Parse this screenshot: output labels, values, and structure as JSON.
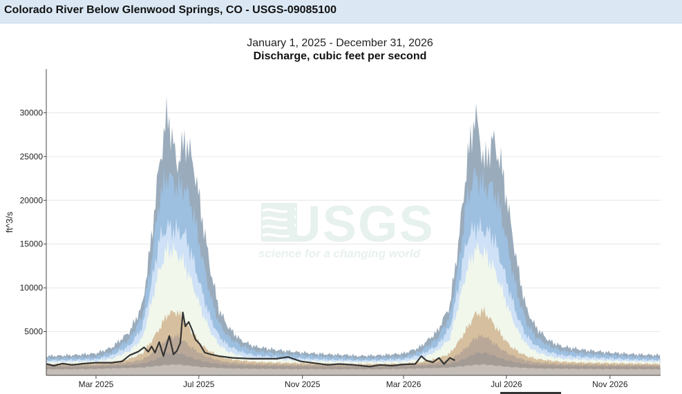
{
  "header": {
    "title": "Colorado River Below Glenwood Springs, CO - USGS-09085100"
  },
  "watermark": {
    "logo_text": "USGS",
    "tagline": "science for a changing world"
  },
  "chart_data": {
    "type": "area",
    "title": "Discharge, cubic feet per second",
    "subtitle": "January 1, 2025 - December 31, 2026",
    "ylabel": "ft^3/s",
    "xlabel": "",
    "xlim": [
      "2025-01-01",
      "2026-12-31"
    ],
    "ylim": [
      0,
      35000
    ],
    "y_ticks": [
      5000,
      10000,
      15000,
      20000,
      25000,
      30000
    ],
    "x_ticks": [
      {
        "date": "2025-03-01",
        "label": "Mar 2025"
      },
      {
        "date": "2025-07-01",
        "label": "Jul 2025"
      },
      {
        "date": "2025-11-01",
        "label": "Nov 2025"
      },
      {
        "date": "2026-03-01",
        "label": "Mar 2026"
      },
      {
        "date": "2026-07-01",
        "label": "Jul 2026"
      },
      {
        "date": "2026-11-01",
        "label": "Nov 2026"
      }
    ],
    "grid": true,
    "bands_annual_profile": {
      "month_day": [
        "01-01",
        "02-01",
        "03-01",
        "03-20",
        "04-10",
        "04-25",
        "05-05",
        "05-15",
        "05-25",
        "06-05",
        "06-15",
        "06-25",
        "07-05",
        "07-15",
        "07-25",
        "08-05",
        "08-20",
        "09-05",
        "10-01",
        "11-01",
        "12-01",
        "12-31"
      ],
      "bands": [
        {
          "color": "#9aabbb",
          "upper": [
            2200,
            2300,
            2500,
            3200,
            5000,
            8000,
            15000,
            24000,
            30000,
            24000,
            27000,
            24000,
            18000,
            12000,
            7500,
            5500,
            4000,
            3300,
            2900,
            2600,
            2400,
            2300
          ]
        },
        {
          "color": "#9dbfe0",
          "upper": [
            1900,
            2000,
            2100,
            2700,
            4200,
            6800,
            12500,
            20000,
            23000,
            21500,
            21500,
            18500,
            13500,
            9000,
            6000,
            4400,
            3400,
            2800,
            2500,
            2300,
            2100,
            2000
          ]
        },
        {
          "color": "#cfe1f6",
          "upper": [
            1700,
            1750,
            1850,
            2300,
            3400,
            5500,
            10000,
            15500,
            17000,
            16500,
            16000,
            13000,
            9500,
            6500,
            4500,
            3400,
            2700,
            2300,
            2100,
            1950,
            1800,
            1750
          ]
        },
        {
          "color": "#f1f7eb",
          "upper": [
            1500,
            1550,
            1600,
            1900,
            2800,
            4200,
            8000,
            12000,
            14500,
            14000,
            12500,
            10000,
            7200,
            5000,
            3500,
            2700,
            2200,
            1900,
            1800,
            1700,
            1600,
            1550
          ]
        },
        {
          "color": "#d6bf9e",
          "upper": [
            1300,
            1300,
            1350,
            1500,
            1900,
            2500,
            3800,
            5300,
            7000,
            7300,
            6000,
            4600,
            3400,
            2700,
            2200,
            1900,
            1700,
            1550,
            1450,
            1400,
            1350,
            1300
          ]
        },
        {
          "color": "#b9a898",
          "upper": [
            1150,
            1150,
            1200,
            1300,
            1500,
            1800,
            2400,
            3200,
            4300,
            4500,
            3800,
            3000,
            2400,
            2000,
            1700,
            1500,
            1400,
            1300,
            1250,
            1200,
            1180,
            1150
          ]
        },
        {
          "color": "#a49b95",
          "upper": [
            1000,
            1000,
            1050,
            1100,
            1200,
            1350,
            1600,
            2000,
            2500,
            2600,
            2300,
            1900,
            1650,
            1450,
            1300,
            1200,
            1150,
            1100,
            1050,
            1020,
            1010,
            1000
          ]
        },
        {
          "color": "#c4bdb8",
          "upper": [
            700,
            700,
            750,
            800,
            850,
            900,
            1000,
            1100,
            1200,
            1250,
            1150,
            1050,
            950,
            900,
            850,
            800,
            780,
            760,
            740,
            720,
            710,
            700
          ]
        }
      ]
    },
    "series": [
      {
        "color": "#333333",
        "points": [
          [
            "2025-01-01",
            1300
          ],
          [
            "2025-01-10",
            1100
          ],
          [
            "2025-01-20",
            1350
          ],
          [
            "2025-02-01",
            1200
          ],
          [
            "2025-02-15",
            1350
          ],
          [
            "2025-03-01",
            1450
          ],
          [
            "2025-03-20",
            1450
          ],
          [
            "2025-04-01",
            1600
          ],
          [
            "2025-04-10",
            2300
          ],
          [
            "2025-04-20",
            2700
          ],
          [
            "2025-04-27",
            3200
          ],
          [
            "2025-05-02",
            2700
          ],
          [
            "2025-05-06",
            3300
          ],
          [
            "2025-05-10",
            2600
          ],
          [
            "2025-05-15",
            3800
          ],
          [
            "2025-05-20",
            2200
          ],
          [
            "2025-05-27",
            4500
          ],
          [
            "2025-06-01",
            2400
          ],
          [
            "2025-06-05",
            2800
          ],
          [
            "2025-06-09",
            3700
          ],
          [
            "2025-06-12",
            7200
          ],
          [
            "2025-06-15",
            5600
          ],
          [
            "2025-06-19",
            6100
          ],
          [
            "2025-06-23",
            5200
          ],
          [
            "2025-06-27",
            4100
          ],
          [
            "2025-07-02",
            3600
          ],
          [
            "2025-07-08",
            2600
          ],
          [
            "2025-07-15",
            2400
          ],
          [
            "2025-07-25",
            2200
          ],
          [
            "2025-08-10",
            2000
          ],
          [
            "2025-09-01",
            1900
          ],
          [
            "2025-10-01",
            1900
          ],
          [
            "2025-10-15",
            2100
          ],
          [
            "2025-10-30",
            1600
          ],
          [
            "2025-11-15",
            1400
          ],
          [
            "2025-12-01",
            1200
          ],
          [
            "2025-12-15",
            1300
          ],
          [
            "2026-01-01",
            1200
          ],
          [
            "2026-01-20",
            1000
          ],
          [
            "2026-02-01",
            1200
          ],
          [
            "2026-02-15",
            1100
          ],
          [
            "2026-03-01",
            1250
          ],
          [
            "2026-03-15",
            1300
          ],
          [
            "2026-03-22",
            2200
          ],
          [
            "2026-03-28",
            1700
          ],
          [
            "2026-04-05",
            1500
          ],
          [
            "2026-04-12",
            2000
          ],
          [
            "2026-04-18",
            1300
          ],
          [
            "2026-04-25",
            2000
          ],
          [
            "2026-05-01",
            1700
          ]
        ]
      }
    ]
  }
}
